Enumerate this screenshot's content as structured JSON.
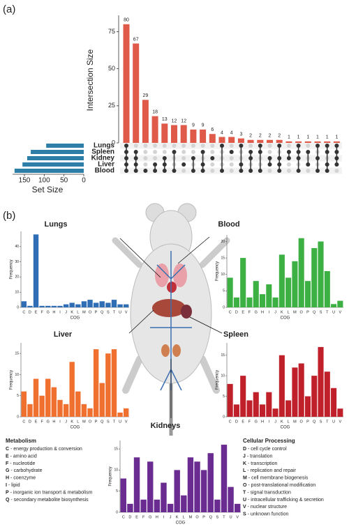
{
  "chart_data": [
    {
      "type": "upset",
      "panel_label": "(a)",
      "ylabel": "Intersection Size",
      "values": [
        80,
        67,
        29,
        18,
        13,
        12,
        12,
        9,
        9,
        6,
        4,
        4,
        3,
        2,
        2,
        2,
        2,
        1,
        1,
        1,
        1,
        1,
        1
      ],
      "ylim": [
        0,
        86
      ],
      "yticks": [
        0,
        25,
        50,
        75
      ],
      "color": "#e05a4a",
      "sets": [
        "Lungs",
        "Spleen",
        "Kidney",
        "Liver",
        "Blood"
      ],
      "set_sizes": [
        95,
        134,
        143,
        155,
        175
      ],
      "set_size_xlim": [
        0,
        180
      ],
      "set_size_xticks": [
        0,
        50,
        100,
        150
      ],
      "set_size_label": "Set Size",
      "set_color": "#2e7fa8",
      "memberships": [
        [
          0,
          1,
          2,
          3,
          4
        ],
        [
          1,
          2,
          3,
          4
        ],
        [
          4
        ],
        [
          3,
          4
        ],
        [
          2,
          3,
          4
        ],
        [
          1,
          4
        ],
        [
          3
        ],
        [
          2,
          4
        ],
        [
          1,
          3,
          4
        ],
        [
          2
        ],
        [
          0,
          4
        ],
        [
          1
        ],
        [
          0,
          3,
          4
        ],
        [
          1,
          2,
          4
        ],
        [
          0,
          1,
          4
        ],
        [
          2,
          3
        ],
        [
          0,
          2,
          3,
          4
        ],
        [
          1,
          2
        ],
        [
          0,
          1,
          2,
          4
        ],
        [
          1,
          3
        ],
        [
          0,
          2,
          4
        ],
        [
          0,
          1,
          3,
          4
        ],
        [
          0,
          1,
          2,
          3
        ]
      ]
    },
    {
      "type": "bar",
      "title": "Lungs",
      "xlabel": "COG",
      "ylabel": "Frequency",
      "color": "#2f6db5",
      "categories": [
        "C",
        "D",
        "E",
        "F",
        "G",
        "H",
        "I",
        "J",
        "K",
        "L",
        "M",
        "O",
        "P",
        "Q",
        "S",
        "T",
        "U",
        "V"
      ],
      "values": [
        4,
        1,
        48,
        1,
        1,
        1,
        1,
        2,
        3,
        2,
        4,
        5,
        3,
        4,
        3,
        5,
        2,
        2
      ],
      "ylim": [
        0,
        50
      ],
      "yticks": [
        0,
        10,
        20,
        30,
        40
      ]
    },
    {
      "type": "bar",
      "title": "Blood",
      "xlabel": "COG",
      "ylabel": "Frequency",
      "color": "#3cb043",
      "categories": [
        "C",
        "D",
        "E",
        "F",
        "G",
        "H",
        "I",
        "J",
        "K",
        "L",
        "M",
        "O",
        "P",
        "Q",
        "S",
        "T",
        "U",
        "V"
      ],
      "values": [
        9,
        3,
        15,
        3,
        8,
        4,
        7,
        3,
        16,
        9,
        14,
        21,
        8,
        18,
        20,
        11,
        1,
        2
      ],
      "ylim": [
        0,
        22
      ],
      "yticks": [
        0,
        5,
        10,
        15,
        20
      ]
    },
    {
      "type": "bar",
      "title": "Liver",
      "xlabel": "COG",
      "ylabel": "Frequency",
      "color": "#f07030",
      "categories": [
        "C",
        "D",
        "E",
        "F",
        "G",
        "H",
        "I",
        "J",
        "K",
        "L",
        "M",
        "O",
        "P",
        "Q",
        "S",
        "T",
        "U",
        "V"
      ],
      "values": [
        6,
        3,
        9,
        5,
        9,
        7,
        4,
        3,
        13,
        6,
        3,
        2,
        16,
        8,
        15,
        16,
        1,
        2
      ],
      "ylim": [
        0,
        17.5
      ],
      "yticks": [
        0,
        5,
        10,
        15
      ]
    },
    {
      "type": "bar",
      "title": "Spleen",
      "xlabel": "COG",
      "ylabel": "Frequency",
      "color": "#c0202a",
      "categories": [
        "C",
        "D",
        "E",
        "F",
        "G",
        "H",
        "I",
        "J",
        "K",
        "L",
        "M",
        "O",
        "P",
        "Q",
        "S",
        "T",
        "U",
        "V"
      ],
      "values": [
        8,
        3,
        10,
        4,
        6,
        3,
        6,
        2,
        15,
        4,
        12,
        13,
        5,
        10,
        17,
        11,
        7,
        2
      ],
      "ylim": [
        0,
        18
      ],
      "yticks": [
        0,
        5,
        10,
        15
      ]
    },
    {
      "type": "bar",
      "title": "Kidneys",
      "xlabel": "COG",
      "ylabel": "Frequency",
      "color": "#6a2c91",
      "categories": [
        "C",
        "D",
        "E",
        "F",
        "G",
        "H",
        "I",
        "J",
        "K",
        "L",
        "M",
        "O",
        "P",
        "Q",
        "S",
        "T",
        "U",
        "V"
      ],
      "values": [
        8,
        2,
        13,
        3,
        12,
        3,
        7,
        2,
        10,
        4,
        13,
        12,
        10,
        14,
        3,
        16,
        6,
        2
      ],
      "ylim": [
        0,
        17
      ],
      "yticks": [
        0,
        5,
        10,
        15
      ]
    }
  ],
  "panel_b_label": "(b)",
  "legend": [
    {
      "heading": "Metabolism",
      "items": [
        {
          "code": "C",
          "text": " - energy production & conversion"
        },
        {
          "code": "E",
          "text": " - amino acid"
        },
        {
          "code": "F",
          "text": " - nucleotide"
        },
        {
          "code": "G",
          "text": " - carbohydrate"
        },
        {
          "code": "H",
          "text": " - coenzyme"
        },
        {
          "code": "I",
          "text": " - lipid"
        },
        {
          "code": "P",
          "text": " - inorganic ion transport & metabolism"
        },
        {
          "code": "Q",
          "text": " - secondary metabolite biosynthesis"
        }
      ]
    },
    {
      "heading": "Cellular Processing",
      "items": [
        {
          "code": "D",
          "text": " - cell cycle control"
        },
        {
          "code": "J",
          "text": " - translation"
        },
        {
          "code": "K",
          "text": " - transcription"
        },
        {
          "code": "L",
          "text": " - replication and repair"
        },
        {
          "code": "M",
          "text": " - cell membrane biogenesis"
        },
        {
          "code": "O",
          "text": " - post-translational modification"
        },
        {
          "code": "T",
          "text": " - signal transduction"
        },
        {
          "code": "U",
          "text": " - intracellular trafficking & secretion"
        },
        {
          "code": "V",
          "text": " - nuclear structure"
        },
        {
          "code": "S",
          "text": " - unknown function"
        }
      ]
    }
  ]
}
